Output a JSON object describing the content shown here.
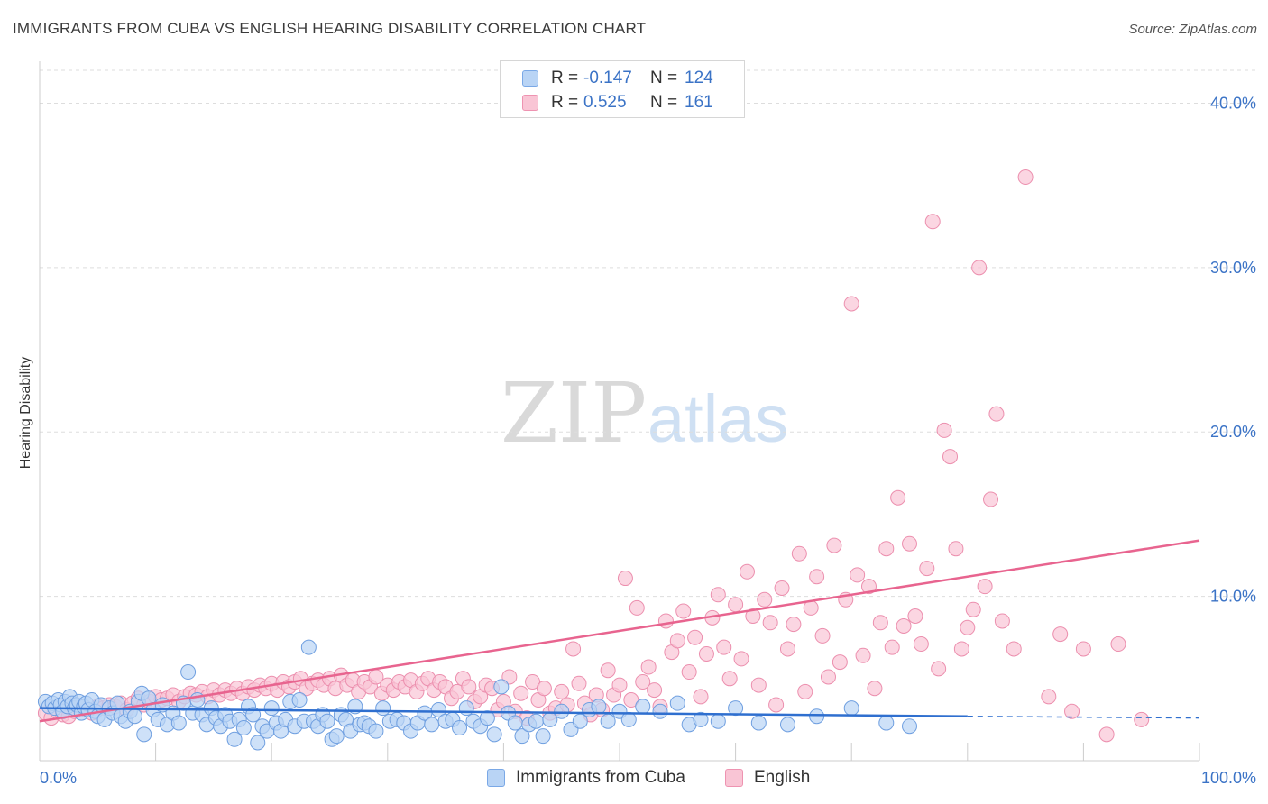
{
  "title": "IMMIGRANTS FROM CUBA VS ENGLISH HEARING DISABILITY CORRELATION CHART",
  "source": "Source: ZipAtlas.com",
  "watermark": {
    "zip": "ZIP",
    "atlas": "atlas"
  },
  "legend_top": {
    "rows": [
      {
        "r_label": "R =",
        "r_value": "-0.147",
        "n_label": "N =",
        "n_value": "124"
      },
      {
        "r_label": "R =",
        "r_value": "0.525",
        "n_label": "N =",
        "n_value": "161"
      }
    ]
  },
  "legend_bottom": [
    "Immigrants from Cuba",
    "English"
  ],
  "colors": {
    "blue_fill": "#b9d4f5",
    "blue_stroke": "#6f9fe0",
    "blue_line": "#2f6fcf",
    "pink_fill": "#f9c5d5",
    "pink_stroke": "#ec8fae",
    "pink_line": "#e8648f",
    "tick_label": "#3b73c6",
    "grid": "#dddddd"
  },
  "chart_data": {
    "type": "scatter",
    "title": "IMMIGRANTS FROM CUBA VS ENGLISH HEARING DISABILITY CORRELATION CHART",
    "xlabel": "",
    "ylabel": "Hearing Disability",
    "xlim": [
      0,
      100
    ],
    "ylim": [
      0,
      42
    ],
    "x_tick_labels": [
      "0.0%",
      "100.0%"
    ],
    "y_ticks": [
      10,
      20,
      30,
      40
    ],
    "y_tick_labels": [
      "10.0%",
      "20.0%",
      "30.0%",
      "40.0%"
    ],
    "grid": "horizontal dashed",
    "legend_position": "bottom",
    "series": [
      {
        "name": "Immigrants from Cuba",
        "r": -0.147,
        "n": 124,
        "trend": {
          "x0": 0,
          "y0": 3.2,
          "x1": 80,
          "y1": 2.7,
          "dashed_to_x": 100,
          "dashed_to_y": 2.6
        },
        "points": [
          [
            0.5,
            3.6
          ],
          [
            0.8,
            3.3
          ],
          [
            1.1,
            3.5
          ],
          [
            1.3,
            3.2
          ],
          [
            1.6,
            3.7
          ],
          [
            1.8,
            3.4
          ],
          [
            2.0,
            3.0
          ],
          [
            2.2,
            3.6
          ],
          [
            2.4,
            3.3
          ],
          [
            2.6,
            3.9
          ],
          [
            2.8,
            3.5
          ],
          [
            3.0,
            3.2
          ],
          [
            3.2,
            3.4
          ],
          [
            3.4,
            3.6
          ],
          [
            3.6,
            2.9
          ],
          [
            3.8,
            3.3
          ],
          [
            4.0,
            3.5
          ],
          [
            4.2,
            3.1
          ],
          [
            4.5,
            3.7
          ],
          [
            4.8,
            3.0
          ],
          [
            5.0,
            2.7
          ],
          [
            5.3,
            3.4
          ],
          [
            5.6,
            2.5
          ],
          [
            6.0,
            3.2
          ],
          [
            6.3,
            2.9
          ],
          [
            6.7,
            3.5
          ],
          [
            7.0,
            2.7
          ],
          [
            7.4,
            2.4
          ],
          [
            7.8,
            3.0
          ],
          [
            8.2,
            2.7
          ],
          [
            8.5,
            3.6
          ],
          [
            8.8,
            4.1
          ],
          [
            9.0,
            1.6
          ],
          [
            9.4,
            3.8
          ],
          [
            9.8,
            3.1
          ],
          [
            10.2,
            2.5
          ],
          [
            10.6,
            3.4
          ],
          [
            11.0,
            2.2
          ],
          [
            11.5,
            2.9
          ],
          [
            12.0,
            2.3
          ],
          [
            12.4,
            3.5
          ],
          [
            12.8,
            5.4
          ],
          [
            13.2,
            2.9
          ],
          [
            13.6,
            3.7
          ],
          [
            14.0,
            2.8
          ],
          [
            14.4,
            2.2
          ],
          [
            14.8,
            3.2
          ],
          [
            15.2,
            2.6
          ],
          [
            15.6,
            2.1
          ],
          [
            16.0,
            2.8
          ],
          [
            16.4,
            2.4
          ],
          [
            16.8,
            1.3
          ],
          [
            17.2,
            2.5
          ],
          [
            17.6,
            2.0
          ],
          [
            18.0,
            3.3
          ],
          [
            18.4,
            2.8
          ],
          [
            18.8,
            1.1
          ],
          [
            19.2,
            2.1
          ],
          [
            19.6,
            1.8
          ],
          [
            20.0,
            3.2
          ],
          [
            20.4,
            2.3
          ],
          [
            20.8,
            1.8
          ],
          [
            21.2,
            2.5
          ],
          [
            21.6,
            3.6
          ],
          [
            22.0,
            2.1
          ],
          [
            22.4,
            3.7
          ],
          [
            22.8,
            2.4
          ],
          [
            23.2,
            6.9
          ],
          [
            23.6,
            2.4
          ],
          [
            24.0,
            2.1
          ],
          [
            24.4,
            2.8
          ],
          [
            24.8,
            2.4
          ],
          [
            25.2,
            1.3
          ],
          [
            25.6,
            1.5
          ],
          [
            26.0,
            2.8
          ],
          [
            26.4,
            2.5
          ],
          [
            26.8,
            1.8
          ],
          [
            27.2,
            3.3
          ],
          [
            27.6,
            2.2
          ],
          [
            28.0,
            2.3
          ],
          [
            28.4,
            2.1
          ],
          [
            29.0,
            1.8
          ],
          [
            29.6,
            3.2
          ],
          [
            30.2,
            2.4
          ],
          [
            30.8,
            2.5
          ],
          [
            31.4,
            2.3
          ],
          [
            32.0,
            1.8
          ],
          [
            32.6,
            2.3
          ],
          [
            33.2,
            2.9
          ],
          [
            33.8,
            2.2
          ],
          [
            34.4,
            3.1
          ],
          [
            35.0,
            2.4
          ],
          [
            35.6,
            2.5
          ],
          [
            36.2,
            2.0
          ],
          [
            36.8,
            3.2
          ],
          [
            37.4,
            2.4
          ],
          [
            38.0,
            2.1
          ],
          [
            38.6,
            2.6
          ],
          [
            39.2,
            1.6
          ],
          [
            39.8,
            4.5
          ],
          [
            40.4,
            2.9
          ],
          [
            41.0,
            2.3
          ],
          [
            41.6,
            1.5
          ],
          [
            42.2,
            2.2
          ],
          [
            42.8,
            2.4
          ],
          [
            43.4,
            1.5
          ],
          [
            44.0,
            2.5
          ],
          [
            45.0,
            3.0
          ],
          [
            45.8,
            1.9
          ],
          [
            46.6,
            2.4
          ],
          [
            47.4,
            3.1
          ],
          [
            48.2,
            3.3
          ],
          [
            49.0,
            2.4
          ],
          [
            50.0,
            3.0
          ],
          [
            50.8,
            2.5
          ],
          [
            52.0,
            3.3
          ],
          [
            53.5,
            3.0
          ],
          [
            55.0,
            3.5
          ],
          [
            56.0,
            2.2
          ],
          [
            57.0,
            2.5
          ],
          [
            58.5,
            2.4
          ],
          [
            60.0,
            3.2
          ],
          [
            62.0,
            2.3
          ],
          [
            64.5,
            2.2
          ],
          [
            67.0,
            2.7
          ],
          [
            70.0,
            3.2
          ],
          [
            73.0,
            2.3
          ],
          [
            75.0,
            2.1
          ]
        ]
      },
      {
        "name": "English",
        "r": 0.525,
        "n": 161,
        "trend": {
          "x0": 0,
          "y0": 2.4,
          "x1": 100,
          "y1": 13.4
        },
        "points": [
          [
            0.5,
            2.9
          ],
          [
            1.0,
            2.6
          ],
          [
            1.5,
            3.0
          ],
          [
            2.0,
            2.8
          ],
          [
            2.5,
            2.7
          ],
          [
            3.0,
            3.0
          ],
          [
            3.5,
            3.2
          ],
          [
            4.0,
            3.1
          ],
          [
            4.5,
            2.9
          ],
          [
            5.0,
            3.3
          ],
          [
            5.5,
            3.2
          ],
          [
            6.0,
            3.4
          ],
          [
            6.5,
            3.3
          ],
          [
            7.0,
            3.5
          ],
          [
            7.5,
            3.1
          ],
          [
            8.0,
            3.5
          ],
          [
            8.5,
            3.8
          ],
          [
            9.0,
            3.4
          ],
          [
            9.5,
            3.6
          ],
          [
            10.0,
            3.9
          ],
          [
            10.5,
            3.7
          ],
          [
            11.0,
            3.8
          ],
          [
            11.5,
            4.0
          ],
          [
            12.0,
            3.6
          ],
          [
            12.5,
            3.9
          ],
          [
            13.0,
            4.1
          ],
          [
            13.5,
            4.0
          ],
          [
            14.0,
            4.2
          ],
          [
            14.5,
            3.9
          ],
          [
            15.0,
            4.3
          ],
          [
            15.5,
            4.0
          ],
          [
            16.0,
            4.3
          ],
          [
            16.5,
            4.1
          ],
          [
            17.0,
            4.4
          ],
          [
            17.5,
            4.1
          ],
          [
            18.0,
            4.5
          ],
          [
            18.5,
            4.3
          ],
          [
            19.0,
            4.6
          ],
          [
            19.5,
            4.4
          ],
          [
            20.0,
            4.7
          ],
          [
            20.5,
            4.3
          ],
          [
            21.0,
            4.8
          ],
          [
            21.5,
            4.5
          ],
          [
            22.0,
            4.8
          ],
          [
            22.5,
            5.0
          ],
          [
            23.0,
            4.4
          ],
          [
            23.5,
            4.7
          ],
          [
            24.0,
            4.9
          ],
          [
            24.5,
            4.6
          ],
          [
            25.0,
            5.0
          ],
          [
            25.5,
            4.4
          ],
          [
            26.0,
            5.2
          ],
          [
            26.5,
            4.6
          ],
          [
            27.0,
            4.9
          ],
          [
            27.5,
            4.2
          ],
          [
            28.0,
            4.8
          ],
          [
            28.5,
            4.5
          ],
          [
            29.0,
            5.1
          ],
          [
            29.5,
            4.1
          ],
          [
            30.0,
            4.6
          ],
          [
            30.5,
            4.3
          ],
          [
            31.0,
            4.8
          ],
          [
            31.5,
            4.5
          ],
          [
            32.0,
            4.9
          ],
          [
            32.5,
            4.2
          ],
          [
            33.0,
            4.7
          ],
          [
            33.5,
            5.0
          ],
          [
            34.0,
            4.3
          ],
          [
            34.5,
            4.8
          ],
          [
            35.0,
            4.5
          ],
          [
            35.5,
            3.8
          ],
          [
            36.0,
            4.2
          ],
          [
            36.5,
            5.0
          ],
          [
            37.0,
            4.5
          ],
          [
            37.5,
            3.6
          ],
          [
            38.0,
            3.9
          ],
          [
            38.5,
            4.6
          ],
          [
            39.0,
            4.4
          ],
          [
            39.5,
            3.1
          ],
          [
            40.0,
            3.6
          ],
          [
            40.5,
            5.1
          ],
          [
            41.0,
            3.0
          ],
          [
            41.5,
            4.1
          ],
          [
            42.0,
            2.6
          ],
          [
            42.5,
            4.8
          ],
          [
            43.0,
            3.7
          ],
          [
            43.5,
            4.4
          ],
          [
            44.0,
            2.9
          ],
          [
            44.5,
            3.2
          ],
          [
            45.0,
            4.2
          ],
          [
            45.5,
            3.4
          ],
          [
            46.0,
            6.8
          ],
          [
            46.5,
            4.7
          ],
          [
            47.0,
            3.5
          ],
          [
            47.5,
            2.8
          ],
          [
            48.0,
            4.0
          ],
          [
            48.5,
            3.1
          ],
          [
            49.0,
            5.5
          ],
          [
            49.5,
            4.0
          ],
          [
            50.0,
            4.6
          ],
          [
            50.5,
            11.1
          ],
          [
            51.0,
            3.7
          ],
          [
            51.5,
            9.3
          ],
          [
            52.0,
            4.8
          ],
          [
            52.5,
            5.7
          ],
          [
            53.0,
            4.3
          ],
          [
            53.5,
            3.3
          ],
          [
            54.0,
            8.5
          ],
          [
            54.5,
            6.6
          ],
          [
            55.0,
            7.3
          ],
          [
            55.5,
            9.1
          ],
          [
            56.0,
            5.4
          ],
          [
            56.5,
            7.5
          ],
          [
            57.0,
            3.9
          ],
          [
            57.5,
            6.5
          ],
          [
            58.0,
            8.7
          ],
          [
            58.5,
            10.1
          ],
          [
            59.0,
            6.9
          ],
          [
            59.5,
            5.0
          ],
          [
            60.0,
            9.5
          ],
          [
            60.5,
            6.2
          ],
          [
            61.0,
            11.5
          ],
          [
            61.5,
            8.8
          ],
          [
            62.0,
            4.6
          ],
          [
            62.5,
            9.8
          ],
          [
            63.0,
            8.4
          ],
          [
            63.5,
            3.4
          ],
          [
            64.0,
            10.5
          ],
          [
            64.5,
            6.8
          ],
          [
            65.0,
            8.3
          ],
          [
            65.5,
            12.6
          ],
          [
            66.0,
            4.2
          ],
          [
            66.5,
            9.3
          ],
          [
            67.0,
            11.2
          ],
          [
            67.5,
            7.6
          ],
          [
            68.0,
            5.1
          ],
          [
            68.5,
            13.1
          ],
          [
            69.0,
            6.0
          ],
          [
            69.5,
            9.8
          ],
          [
            70.0,
            27.8
          ],
          [
            70.5,
            11.3
          ],
          [
            71.0,
            6.4
          ],
          [
            71.5,
            10.6
          ],
          [
            72.0,
            4.4
          ],
          [
            72.5,
            8.4
          ],
          [
            73.0,
            12.9
          ],
          [
            73.5,
            6.9
          ],
          [
            74.0,
            16.0
          ],
          [
            74.5,
            8.2
          ],
          [
            75.0,
            13.2
          ],
          [
            75.5,
            8.8
          ],
          [
            76.0,
            7.1
          ],
          [
            76.5,
            11.7
          ],
          [
            77.0,
            32.8
          ],
          [
            77.5,
            5.6
          ],
          [
            78.0,
            20.1
          ],
          [
            78.5,
            18.5
          ],
          [
            79.0,
            12.9
          ],
          [
            79.5,
            6.8
          ],
          [
            80.0,
            8.1
          ],
          [
            80.5,
            9.2
          ],
          [
            81.0,
            30.0
          ],
          [
            81.5,
            10.6
          ],
          [
            82.0,
            15.9
          ],
          [
            82.5,
            21.1
          ],
          [
            83.0,
            8.5
          ],
          [
            84.0,
            6.8
          ],
          [
            85.0,
            35.5
          ],
          [
            87.0,
            3.9
          ],
          [
            88.0,
            7.7
          ],
          [
            89.0,
            3.0
          ],
          [
            90.0,
            6.8
          ],
          [
            92.0,
            1.6
          ],
          [
            93.0,
            7.1
          ],
          [
            95.0,
            2.5
          ]
        ]
      }
    ]
  }
}
